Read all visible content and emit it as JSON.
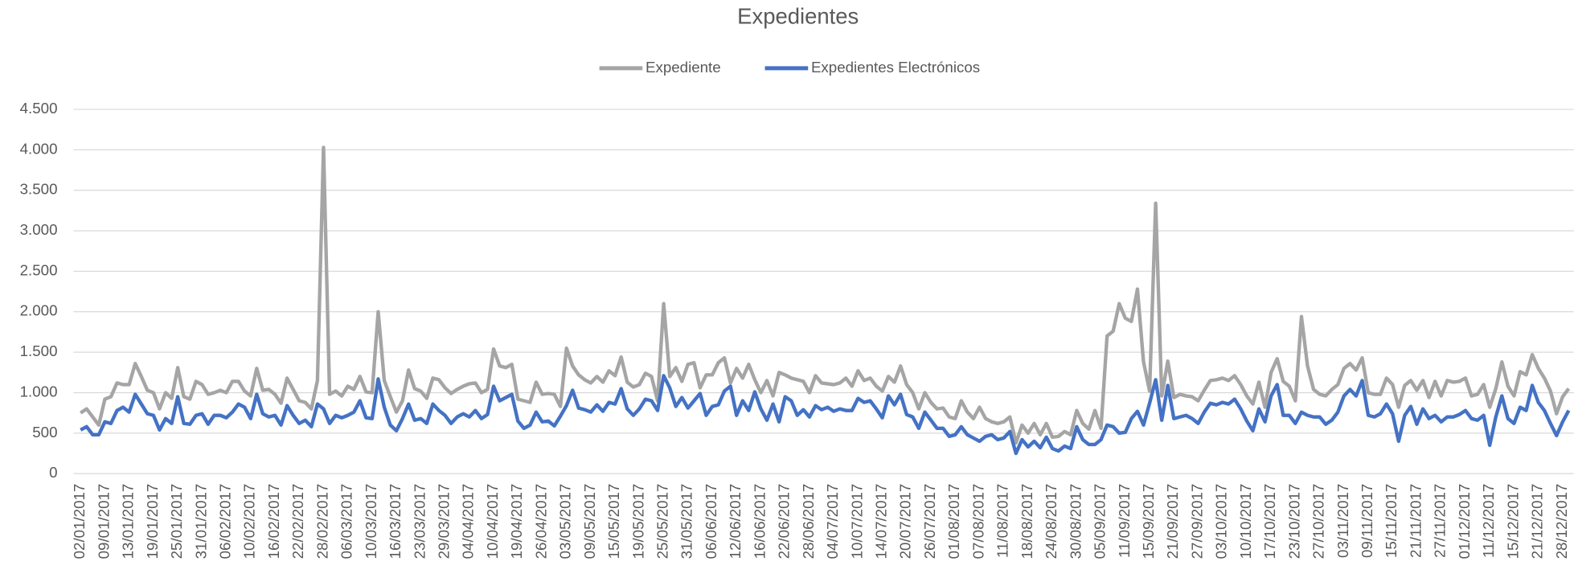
{
  "chart_data": {
    "type": "line",
    "title": "Expedientes",
    "categories": [
      "02/01/2017",
      null,
      null,
      null,
      "09/01/2017",
      null,
      null,
      null,
      "13/01/2017",
      null,
      null,
      null,
      "19/01/2017",
      null,
      null,
      null,
      "25/01/2017",
      null,
      null,
      null,
      "31/01/2017",
      null,
      null,
      null,
      "06/02/2017",
      null,
      null,
      null,
      "10/02/2017",
      null,
      null,
      null,
      "16/02/2017",
      null,
      null,
      null,
      "22/02/2017",
      null,
      null,
      null,
      "28/02/2017",
      null,
      null,
      null,
      "06/03/2017",
      null,
      null,
      null,
      "10/03/2017",
      null,
      null,
      null,
      "16/03/2017",
      null,
      null,
      null,
      "23/03/2017",
      null,
      null,
      null,
      "29/03/2017",
      null,
      null,
      null,
      "04/04/2017",
      null,
      null,
      null,
      "10/04/2017",
      null,
      null,
      null,
      "19/04/2017",
      null,
      null,
      null,
      "26/04/2017",
      null,
      null,
      null,
      "03/05/2017",
      null,
      null,
      null,
      "09/05/2017",
      null,
      null,
      null,
      "15/05/2017",
      null,
      null,
      null,
      "19/05/2017",
      null,
      null,
      null,
      "25/05/2017",
      null,
      null,
      null,
      "31/05/2017",
      null,
      null,
      null,
      "06/06/2017",
      null,
      null,
      null,
      "12/06/2017",
      null,
      null,
      null,
      "16/06/2017",
      null,
      null,
      null,
      "22/06/2017",
      null,
      null,
      null,
      "28/06/2017",
      null,
      null,
      null,
      "04/07/2017",
      null,
      null,
      null,
      "10/07/2017",
      null,
      null,
      null,
      "14/07/2017",
      null,
      null,
      null,
      "20/07/2017",
      null,
      null,
      null,
      "26/07/2017",
      null,
      null,
      null,
      "01/08/2017",
      null,
      null,
      null,
      "07/08/2017",
      null,
      null,
      null,
      "11/08/2017",
      null,
      null,
      null,
      "18/08/2017",
      null,
      null,
      null,
      "24/08/2017",
      null,
      null,
      null,
      "30/08/2017",
      null,
      null,
      null,
      "05/09/2017",
      null,
      null,
      null,
      "11/09/2017",
      null,
      null,
      null,
      "15/09/2017",
      null,
      null,
      null,
      "21/09/2017",
      null,
      null,
      null,
      "27/09/2017",
      null,
      null,
      null,
      "03/10/2017",
      null,
      null,
      null,
      "10/10/2017",
      null,
      null,
      null,
      "17/10/2017",
      null,
      null,
      null,
      "23/10/2017",
      null,
      null,
      null,
      "27/10/2017",
      null,
      null,
      null,
      "03/11/2017",
      null,
      null,
      null,
      "09/11/2017",
      null,
      null,
      null,
      "15/11/2017",
      null,
      null,
      null,
      "21/11/2017",
      null,
      null,
      null,
      "27/11/2017",
      null,
      null,
      null,
      "01/12/2017",
      null,
      null,
      null,
      "11/12/2017",
      null,
      null,
      null,
      "15/12/2017",
      null,
      null,
      null,
      "21/12/2017",
      null,
      null,
      null,
      "28/12/2017",
      null
    ],
    "series": [
      {
        "name": "Expediente",
        "color": "#a5a5a5",
        "values": [
          750,
          800,
          700,
          600,
          920,
          950,
          1120,
          1100,
          1100,
          1360,
          1200,
          1030,
          1000,
          800,
          1000,
          930,
          1310,
          950,
          920,
          1140,
          1100,
          980,
          1000,
          1030,
          1000,
          1140,
          1140,
          1020,
          960,
          1300,
          1030,
          1040,
          980,
          870,
          1180,
          1040,
          900,
          880,
          800,
          1150,
          4030,
          980,
          1020,
          960,
          1080,
          1040,
          1200,
          1010,
          1000,
          2000,
          1150,
          950,
          760,
          900,
          1280,
          1050,
          1020,
          930,
          1180,
          1160,
          1060,
          990,
          1040,
          1080,
          1110,
          1120,
          1000,
          1040,
          1540,
          1330,
          1310,
          1350,
          920,
          900,
          880,
          1130,
          980,
          990,
          980,
          830,
          1550,
          1330,
          1220,
          1160,
          1120,
          1200,
          1130,
          1270,
          1210,
          1440,
          1130,
          1070,
          1100,
          1240,
          1200,
          900,
          2100,
          1200,
          1310,
          1140,
          1350,
          1370,
          1060,
          1220,
          1220,
          1370,
          1430,
          1120,
          1300,
          1180,
          1350,
          1160,
          1000,
          1150,
          960,
          1250,
          1220,
          1180,
          1160,
          1140,
          1000,
          1210,
          1120,
          1110,
          1100,
          1120,
          1180,
          1080,
          1270,
          1150,
          1180,
          1080,
          1020,
          1200,
          1130,
          1330,
          1100,
          1000,
          800,
          1000,
          880,
          800,
          810,
          700,
          680,
          900,
          760,
          680,
          820,
          680,
          640,
          620,
          640,
          700,
          380,
          600,
          500,
          620,
          480,
          620,
          450,
          460,
          520,
          480,
          780,
          620,
          550,
          780,
          560,
          1700,
          1760,
          2100,
          1920,
          1880,
          2280,
          1380,
          1020,
          3340,
          960,
          1390,
          940,
          980,
          960,
          950,
          900,
          1030,
          1150,
          1160,
          1180,
          1150,
          1210,
          1100,
          960,
          860,
          1130,
          820,
          1250,
          1420,
          1140,
          1080,
          900,
          1940,
          1330,
          1040,
          980,
          960,
          1040,
          1100,
          1300,
          1360,
          1280,
          1430,
          1000,
          980,
          980,
          1180,
          1100,
          820,
          1090,
          1150,
          1030,
          1150,
          940,
          1140,
          960,
          1150,
          1130,
          1140,
          1180,
          960,
          980,
          1100,
          820,
          1050,
          1380,
          1080,
          960,
          1260,
          1220,
          1470,
          1300,
          1180,
          1020,
          740,
          950,
          1050
        ]
      },
      {
        "name": "Expedientes Electrónicos",
        "color": "#4472c4",
        "values": [
          540,
          580,
          480,
          480,
          640,
          620,
          780,
          820,
          760,
          980,
          860,
          740,
          720,
          540,
          680,
          620,
          950,
          620,
          610,
          720,
          740,
          610,
          720,
          720,
          690,
          760,
          860,
          820,
          680,
          980,
          740,
          700,
          720,
          600,
          840,
          720,
          620,
          660,
          580,
          860,
          800,
          620,
          720,
          690,
          720,
          760,
          900,
          690,
          680,
          1170,
          820,
          600,
          530,
          680,
          860,
          660,
          680,
          620,
          860,
          780,
          720,
          620,
          700,
          740,
          700,
          780,
          680,
          730,
          1080,
          900,
          940,
          980,
          650,
          560,
          600,
          760,
          640,
          650,
          590,
          710,
          840,
          1030,
          810,
          790,
          760,
          850,
          770,
          880,
          860,
          1050,
          800,
          720,
          800,
          920,
          900,
          780,
          1210,
          1060,
          830,
          940,
          810,
          900,
          990,
          720,
          830,
          850,
          1020,
          1080,
          720,
          900,
          780,
          1010,
          800,
          660,
          860,
          640,
          950,
          900,
          720,
          790,
          700,
          840,
          790,
          820,
          770,
          800,
          780,
          780,
          930,
          880,
          900,
          800,
          690,
          960,
          850,
          980,
          730,
          700,
          560,
          760,
          660,
          560,
          560,
          460,
          480,
          580,
          480,
          440,
          400,
          460,
          480,
          420,
          440,
          520,
          250,
          420,
          330,
          400,
          320,
          450,
          310,
          280,
          340,
          310,
          580,
          420,
          360,
          360,
          420,
          600,
          580,
          500,
          510,
          680,
          770,
          600,
          870,
          1160,
          660,
          1090,
          680,
          700,
          720,
          680,
          620,
          760,
          870,
          850,
          880,
          860,
          920,
          800,
          650,
          530,
          800,
          640,
          960,
          1100,
          720,
          720,
          620,
          760,
          720,
          700,
          700,
          610,
          660,
          760,
          960,
          1040,
          960,
          1150,
          720,
          700,
          740,
          860,
          740,
          400,
          720,
          830,
          610,
          800,
          680,
          720,
          640,
          700,
          700,
          730,
          780,
          680,
          660,
          720,
          350,
          700,
          960,
          680,
          620,
          820,
          780,
          1090,
          880,
          780,
          620,
          470,
          640,
          780
        ]
      }
    ],
    "ylim": [
      0,
      4500
    ],
    "yticks": [
      0,
      500,
      {
        "value": 1000,
        "label": "1.000"
      },
      {
        "value": 1500,
        "label": "1.500"
      },
      {
        "value": 2000,
        "label": "2.000"
      },
      {
        "value": 2500,
        "label": "2.500"
      },
      {
        "value": 3000,
        "label": "3.000"
      },
      {
        "value": 3500,
        "label": "3.500"
      },
      {
        "value": 4000,
        "label": "4.000"
      },
      {
        "value": 4500,
        "label": "4.500"
      }
    ],
    "grid": true,
    "legend": "top"
  }
}
